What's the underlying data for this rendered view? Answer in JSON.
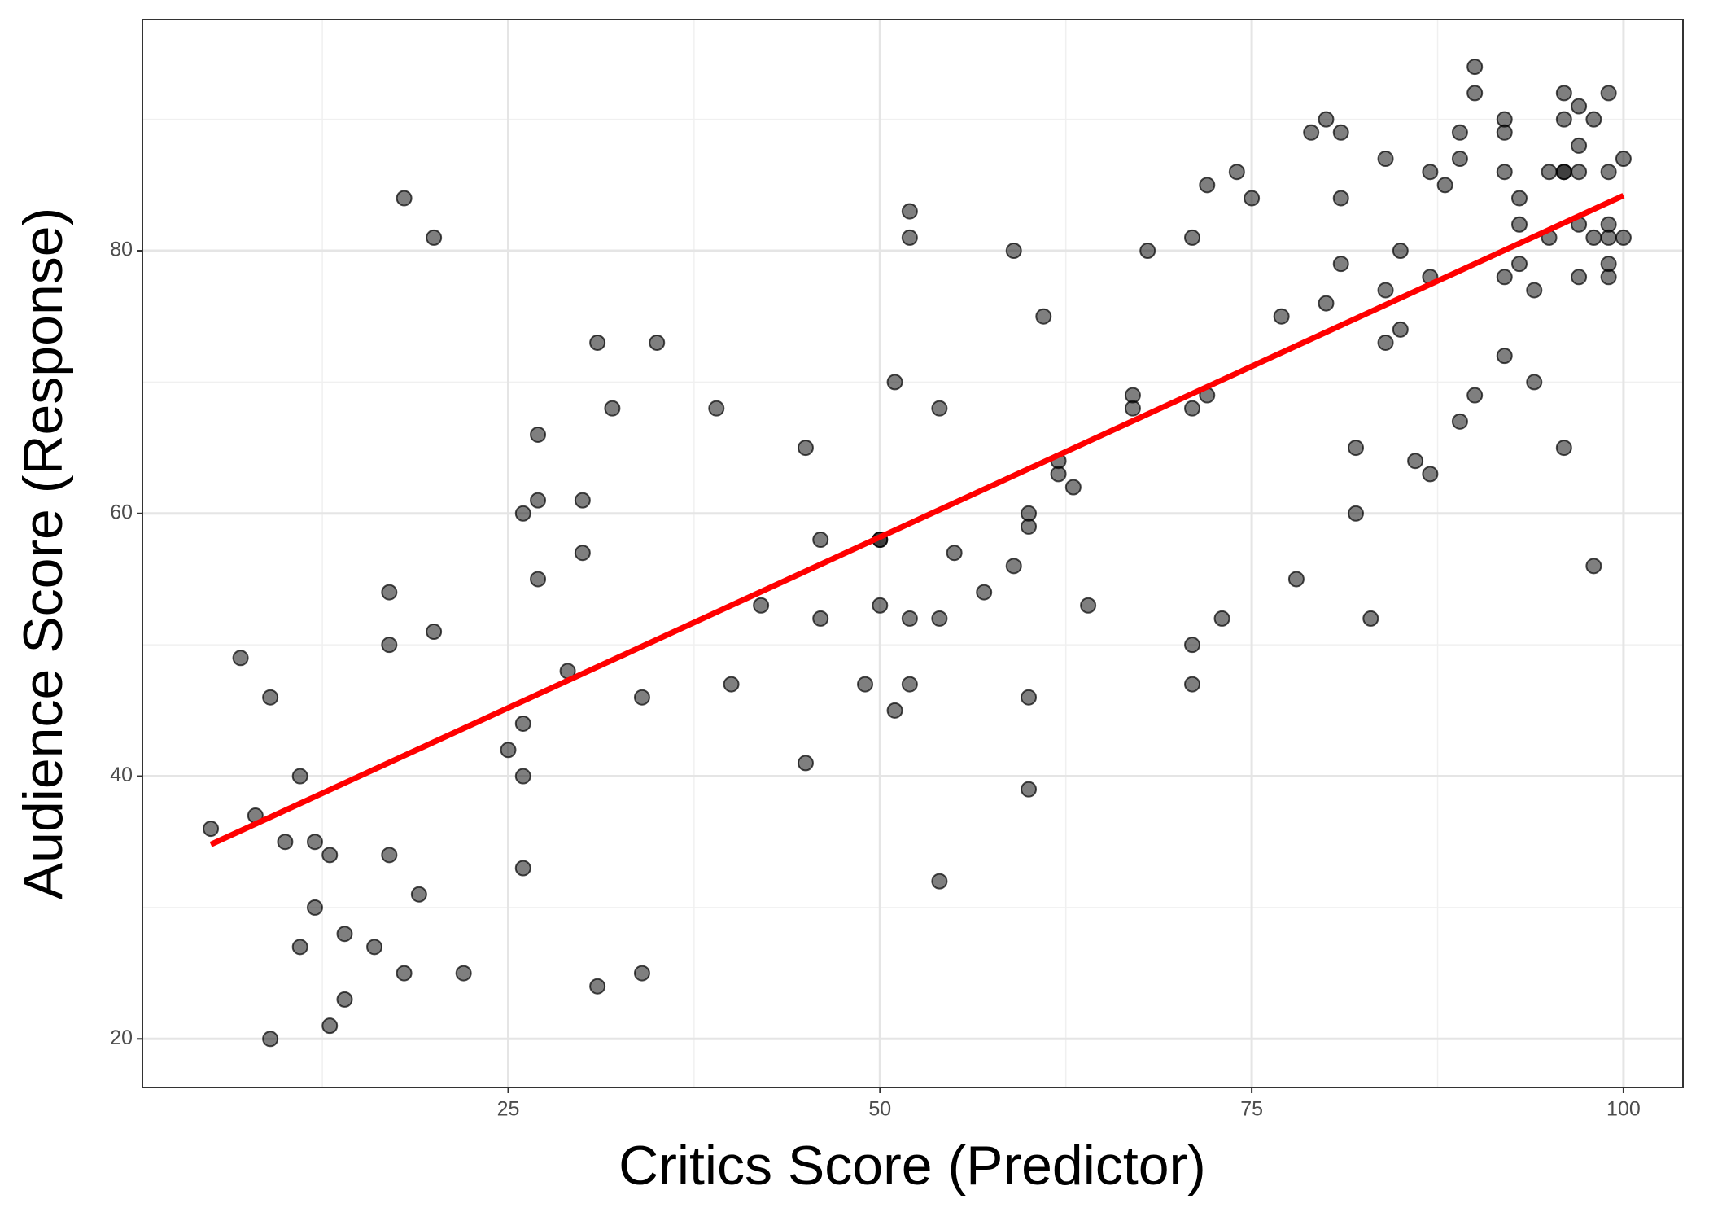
{
  "chart_data": {
    "type": "scatter",
    "xlabel": "Critics Score (Predictor)",
    "ylabel": "Audience Score (Response)",
    "xlim": [
      0.4,
      104
    ],
    "ylim": [
      16.3,
      97.6
    ],
    "xticks": [
      25,
      50,
      75,
      100
    ],
    "yticks": [
      20,
      40,
      60,
      80
    ],
    "xminor": [
      12.5,
      37.5,
      62.5,
      87.5
    ],
    "yminor": [
      30,
      50,
      70,
      90
    ],
    "grid": true,
    "point_color": "#000000",
    "x": [
      5,
      7,
      8,
      9,
      9,
      10,
      11,
      11,
      12,
      12,
      13,
      13,
      14,
      14,
      16,
      17,
      17,
      17,
      18,
      18,
      19,
      20,
      20,
      22,
      25,
      26,
      26,
      26,
      26,
      27,
      27,
      27,
      29,
      30,
      30,
      31,
      31,
      32,
      34,
      34,
      35,
      39,
      40,
      42,
      45,
      45,
      46,
      46,
      49,
      50,
      50,
      50,
      51,
      51,
      52,
      52,
      52,
      52,
      54,
      54,
      54,
      55,
      57,
      59,
      59,
      60,
      60,
      60,
      60,
      61,
      62,
      62,
      63,
      64,
      67,
      67,
      68,
      71,
      71,
      71,
      71,
      72,
      72,
      73,
      74,
      75,
      77,
      78,
      79,
      80,
      80,
      81,
      81,
      81,
      82,
      82,
      83,
      84,
      84,
      84,
      85,
      85,
      86,
      87,
      87,
      87,
      88,
      89,
      89,
      89,
      90,
      90,
      90,
      92,
      92,
      92,
      92,
      92,
      93,
      93,
      93,
      94,
      94,
      95,
      95,
      96,
      96,
      96,
      96,
      96,
      97,
      97,
      97,
      97,
      97,
      98,
      98,
      98,
      99,
      99,
      99,
      99,
      99,
      99,
      100,
      100
    ],
    "y": [
      36,
      49,
      37,
      46,
      20,
      35,
      40,
      27,
      35,
      30,
      34,
      21,
      28,
      23,
      27,
      54,
      50,
      34,
      84,
      25,
      31,
      81,
      51,
      25,
      42,
      60,
      44,
      40,
      33,
      66,
      61,
      55,
      48,
      61,
      57,
      73,
      24,
      68,
      46,
      25,
      73,
      68,
      47,
      53,
      65,
      41,
      58,
      52,
      47,
      58,
      58,
      53,
      70,
      45,
      83,
      81,
      52,
      47,
      68,
      52,
      32,
      57,
      54,
      80,
      56,
      60,
      59,
      46,
      39,
      75,
      64,
      63,
      62,
      53,
      69,
      68,
      80,
      81,
      68,
      50,
      47,
      85,
      69,
      52,
      86,
      84,
      75,
      55,
      89,
      90,
      76,
      89,
      84,
      79,
      65,
      60,
      52,
      87,
      77,
      73,
      80,
      74,
      64,
      86,
      78,
      63,
      85,
      89,
      87,
      67,
      94,
      92,
      69,
      90,
      89,
      86,
      78,
      72,
      84,
      82,
      79,
      77,
      70,
      86,
      81,
      92,
      90,
      86,
      86,
      65,
      91,
      88,
      86,
      82,
      78,
      90,
      81,
      56,
      92,
      86,
      82,
      81,
      79,
      78,
      87,
      81
    ],
    "fit": {
      "color": "#ff0000",
      "x": [
        5,
        100
      ],
      "y": [
        34.8,
        84.2
      ]
    }
  }
}
